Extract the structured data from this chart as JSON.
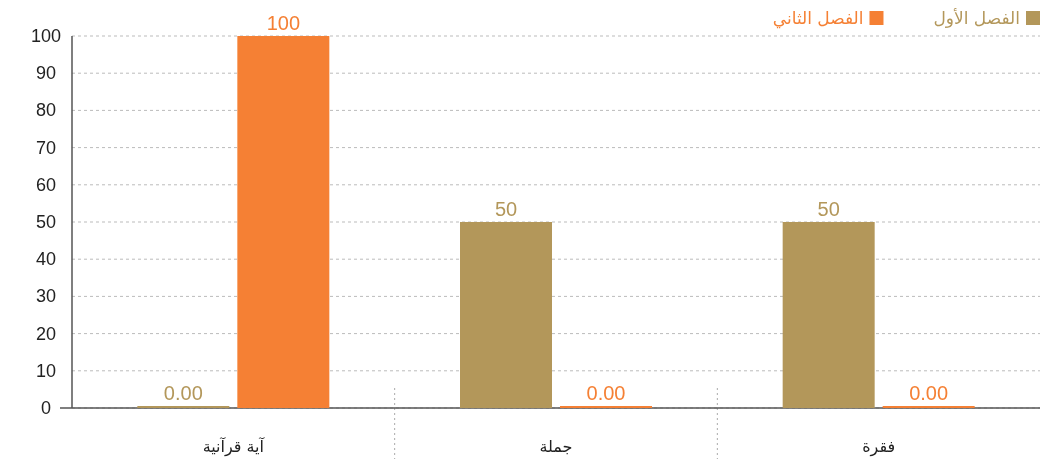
{
  "chart_data": {
    "type": "bar",
    "categories": [
      "آية قرآنية",
      "جملة",
      "فقرة"
    ],
    "series": [
      {
        "name": "الفصل الأول",
        "color": "#b3975a",
        "values": [
          0,
          50,
          50
        ],
        "value_labels": [
          "0.00",
          "50",
          "50"
        ]
      },
      {
        "name": "الفصل الثاني",
        "color": "#f58034",
        "values": [
          100,
          0,
          0
        ],
        "value_labels": [
          "100",
          "0.00",
          "0.00"
        ]
      }
    ],
    "ylim": [
      0,
      100
    ],
    "yticks": [
      0,
      10,
      20,
      30,
      40,
      50,
      60,
      70,
      80,
      90,
      100
    ],
    "grid": "y",
    "legend": "top right"
  }
}
